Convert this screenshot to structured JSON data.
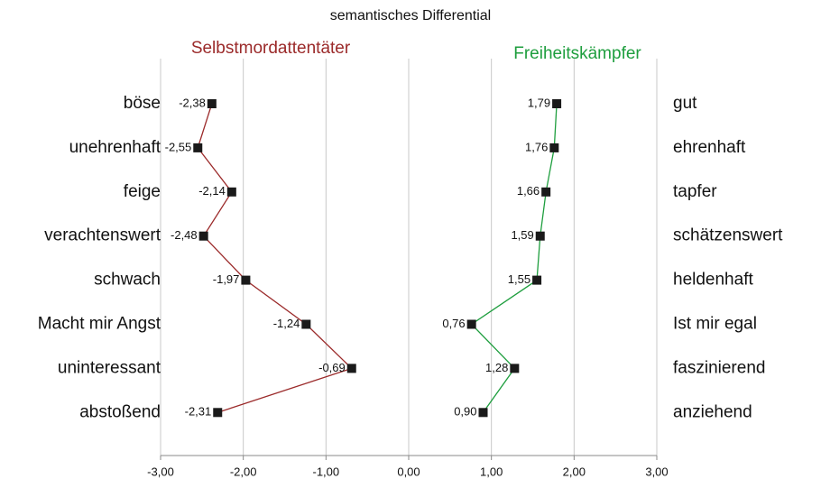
{
  "chart_data": {
    "type": "line",
    "title": "semantisches Differential",
    "categories": [
      "böse",
      "unehrenhaft",
      "feige",
      "verachtenswert",
      "schwach",
      "Macht mir Angst",
      "uninteressant",
      "abstoßend"
    ],
    "categories_right": [
      "gut",
      "ehrenhaft",
      "tapfer",
      "schätzenswert",
      "heldenhaft",
      "Ist mir egal",
      "faszinierend",
      "anziehend"
    ],
    "series": [
      {
        "name": "Selbstmordattentäter",
        "color": "#9b2a2a",
        "values": [
          -2.38,
          -2.55,
          -2.14,
          -2.48,
          -1.97,
          -1.24,
          -0.69,
          -2.31
        ],
        "value_labels": [
          "-2,38",
          "-2,55",
          "-2,14",
          "-2,48",
          "-1,97",
          "-1,24",
          "-0,69",
          "-2,31"
        ]
      },
      {
        "name": "Freiheitskämpfer",
        "color": "#1e9e3e",
        "values": [
          1.79,
          1.76,
          1.66,
          1.59,
          1.55,
          0.76,
          1.28,
          0.9
        ],
        "value_labels": [
          "1,79",
          "1,76",
          "1,66",
          "1,59",
          "1,55",
          "0,76",
          "1,28",
          "0,90"
        ]
      }
    ],
    "xlim": [
      -3,
      3
    ],
    "xticks": [
      {
        "value": -3,
        "label": "-3,00"
      },
      {
        "value": -2,
        "label": "-2,00"
      },
      {
        "value": -1,
        "label": "-1,00"
      },
      {
        "value": 0,
        "label": "0,00"
      },
      {
        "value": 1,
        "label": "1,00"
      },
      {
        "value": 2,
        "label": "2,00"
      },
      {
        "value": 3,
        "label": "3,00"
      }
    ],
    "grid": true
  }
}
